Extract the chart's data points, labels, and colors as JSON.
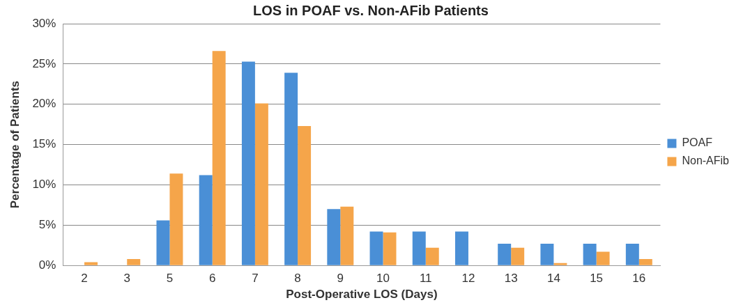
{
  "chart_data": {
    "type": "bar",
    "title": "LOS in POAF vs. Non-AFib Patients",
    "xlabel": "Post-Operative LOS (Days)",
    "ylabel": "Percentage of Patients",
    "categories": [
      "2",
      "3",
      "5",
      "6",
      "7",
      "8",
      "9",
      "10",
      "11",
      "12",
      "13",
      "14",
      "15",
      "16"
    ],
    "series": [
      {
        "name": "POAF",
        "color": "#4a8fd6",
        "values": [
          0,
          0,
          5.6,
          11.2,
          25.3,
          23.9,
          7.0,
          4.2,
          4.2,
          4.2,
          2.7,
          2.7,
          2.7,
          2.7
        ]
      },
      {
        "name": "Non-AFib",
        "color": "#f5a54a",
        "values": [
          0.4,
          0.8,
          11.4,
          26.6,
          20.1,
          17.3,
          7.3,
          4.1,
          2.2,
          0,
          2.2,
          0.3,
          1.7,
          0.8
        ]
      }
    ],
    "ylim": [
      0,
      30
    ],
    "yticks": [
      {
        "value": 0,
        "label": "0%"
      },
      {
        "value": 5,
        "label": "5%"
      },
      {
        "value": 10,
        "label": "10%"
      },
      {
        "value": 15,
        "label": "15%"
      },
      {
        "value": 20,
        "label": "20%"
      },
      {
        "value": 25,
        "label": "25%"
      },
      {
        "value": 30,
        "label": "30%"
      }
    ],
    "grid": "y",
    "legend": "right"
  }
}
